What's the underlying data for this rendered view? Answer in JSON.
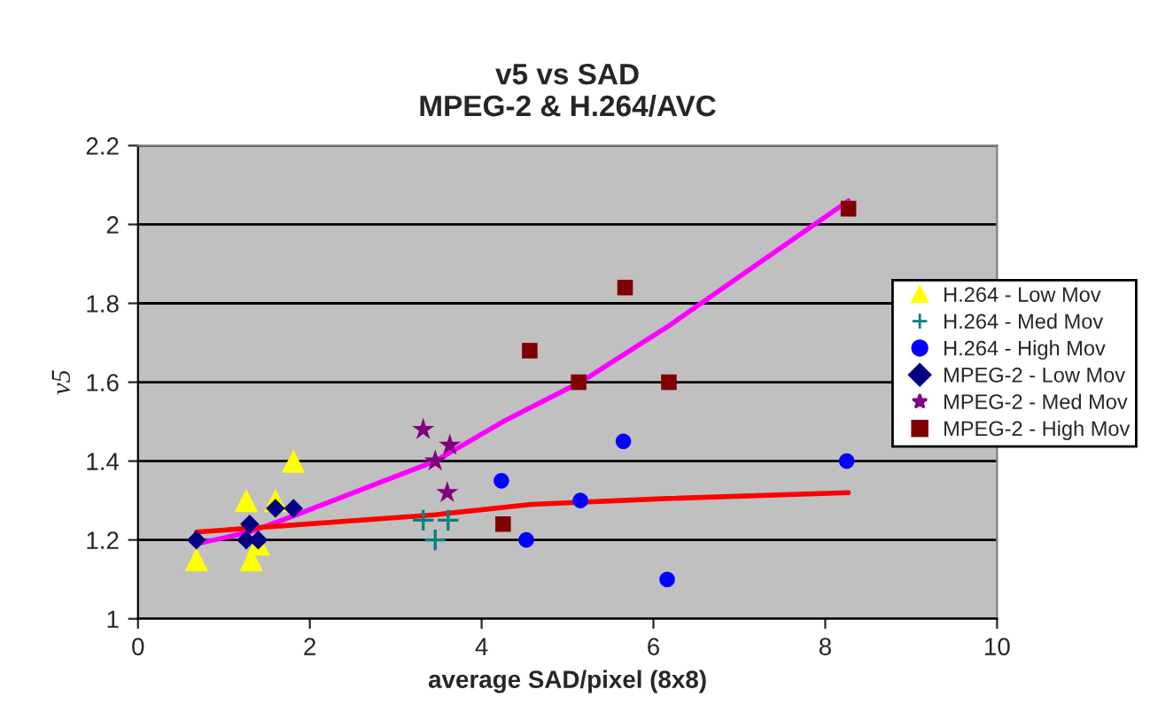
{
  "chart_data": {
    "type": "scatter",
    "title": "v5 vs SAD\nMPEG-2 & H.264/AVC",
    "xlabel": "average SAD/pixel (8x8)",
    "ylabel": "v5",
    "xlim": [
      0,
      10
    ],
    "xticks": [
      0,
      2,
      4,
      6,
      8,
      10
    ],
    "ylim": [
      1,
      2.2
    ],
    "yticks": [
      1,
      {
        "value": 1.2,
        "label": "1.2"
      },
      {
        "value": 1.4,
        "label": "1.4"
      },
      {
        "value": 1.6,
        "label": "1.6"
      },
      {
        "value": 1.8,
        "label": "1.8"
      },
      2,
      {
        "value": 2.2,
        "label": "2.2"
      }
    ],
    "grid": "y",
    "legend": "right",
    "series": [
      {
        "name": "H.264 - Low Mov",
        "color": "#ffff00",
        "marker": "triangle",
        "x": [
          0.68,
          1.26,
          1.32,
          1.6,
          1.81,
          1.4
        ],
        "values": [
          1.15,
          1.3,
          1.15,
          1.3,
          1.4,
          1.19
        ]
      },
      {
        "name": "H.264 - Med Mov",
        "color": "#008080",
        "marker": "cross",
        "x": [
          3.32,
          3.46,
          3.61
        ],
        "values": [
          1.25,
          1.2,
          1.25
        ]
      },
      {
        "name": "H.264 - High Mov",
        "color": "#0000ff",
        "marker": "circle",
        "x": [
          4.23,
          4.52,
          5.15,
          5.65,
          6.16,
          8.25
        ],
        "values": [
          1.35,
          1.2,
          1.3,
          1.45,
          1.1,
          1.4
        ]
      },
      {
        "name": "MPEG-2 - Low Mov",
        "color": "#000080",
        "marker": "diamond",
        "x": [
          0.68,
          1.3,
          1.26,
          1.4,
          1.6,
          1.81
        ],
        "values": [
          1.2,
          1.24,
          1.2,
          1.2,
          1.28,
          1.28
        ]
      },
      {
        "name": "MPEG-2 - Med Mov",
        "color": "#800080",
        "marker": "star",
        "x": [
          3.32,
          3.46,
          3.63,
          3.6
        ],
        "values": [
          1.48,
          1.4,
          1.44,
          1.32
        ]
      },
      {
        "name": "MPEG-2 - High Mov",
        "color": "#800000",
        "marker": "square",
        "x": [
          4.25,
          4.56,
          5.13,
          5.67,
          6.18,
          8.27
        ],
        "values": [
          1.24,
          1.68,
          1.6,
          1.84,
          1.6,
          2.04
        ]
      },
      {
        "type": "line",
        "color": "#ff00ff",
        "marker": "none",
        "x": [
          0.68,
          1.3,
          1.8,
          3.46,
          4.25,
          5.15,
          6.16,
          8.27
        ],
        "values": [
          1.19,
          1.22,
          1.26,
          1.4,
          1.5,
          1.6,
          1.74,
          2.06
        ]
      },
      {
        "type": "line",
        "color": "#ff0000",
        "marker": "none",
        "x": [
          0.68,
          3.46,
          4.58,
          6.16,
          8.27
        ],
        "values": [
          1.22,
          1.264,
          1.29,
          1.305,
          1.32
        ]
      }
    ]
  }
}
